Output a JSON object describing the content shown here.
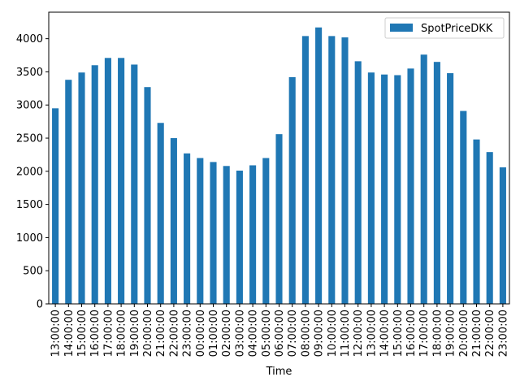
{
  "chart_data": {
    "type": "bar",
    "xlabel": "Time",
    "ylabel": "",
    "ylim": [
      0,
      4400
    ],
    "yticks": [
      0,
      500,
      1000,
      1500,
      2000,
      2500,
      3000,
      3500,
      4000
    ],
    "legend_position": "top-right",
    "grid": false,
    "colors": {
      "bar": "#1f77b4"
    },
    "categories": [
      "13:00:00",
      "14:00:00",
      "15:00:00",
      "16:00:00",
      "17:00:00",
      "18:00:00",
      "19:00:00",
      "20:00:00",
      "21:00:00",
      "22:00:00",
      "23:00:00",
      "00:00:00",
      "01:00:00",
      "02:00:00",
      "03:00:00",
      "04:00:00",
      "05:00:00",
      "06:00:00",
      "07:00:00",
      "08:00:00",
      "09:00:00",
      "10:00:00",
      "11:00:00",
      "12:00:00",
      "13:00:00",
      "14:00:00",
      "15:00:00",
      "16:00:00",
      "17:00:00",
      "18:00:00",
      "19:00:00",
      "20:00:00",
      "21:00:00",
      "22:00:00",
      "23:00:00"
    ],
    "series": [
      {
        "name": "SpotPriceDKK",
        "values": [
          2950,
          3380,
          3490,
          3600,
          3710,
          3710,
          3610,
          3270,
          2730,
          2500,
          2270,
          2200,
          2140,
          2080,
          2010,
          2090,
          2200,
          2560,
          3420,
          4040,
          4170,
          4040,
          4020,
          3660,
          3490,
          3460,
          3450,
          3550,
          3760,
          3650,
          3480,
          2910,
          2480,
          2290,
          2060
        ]
      }
    ]
  }
}
